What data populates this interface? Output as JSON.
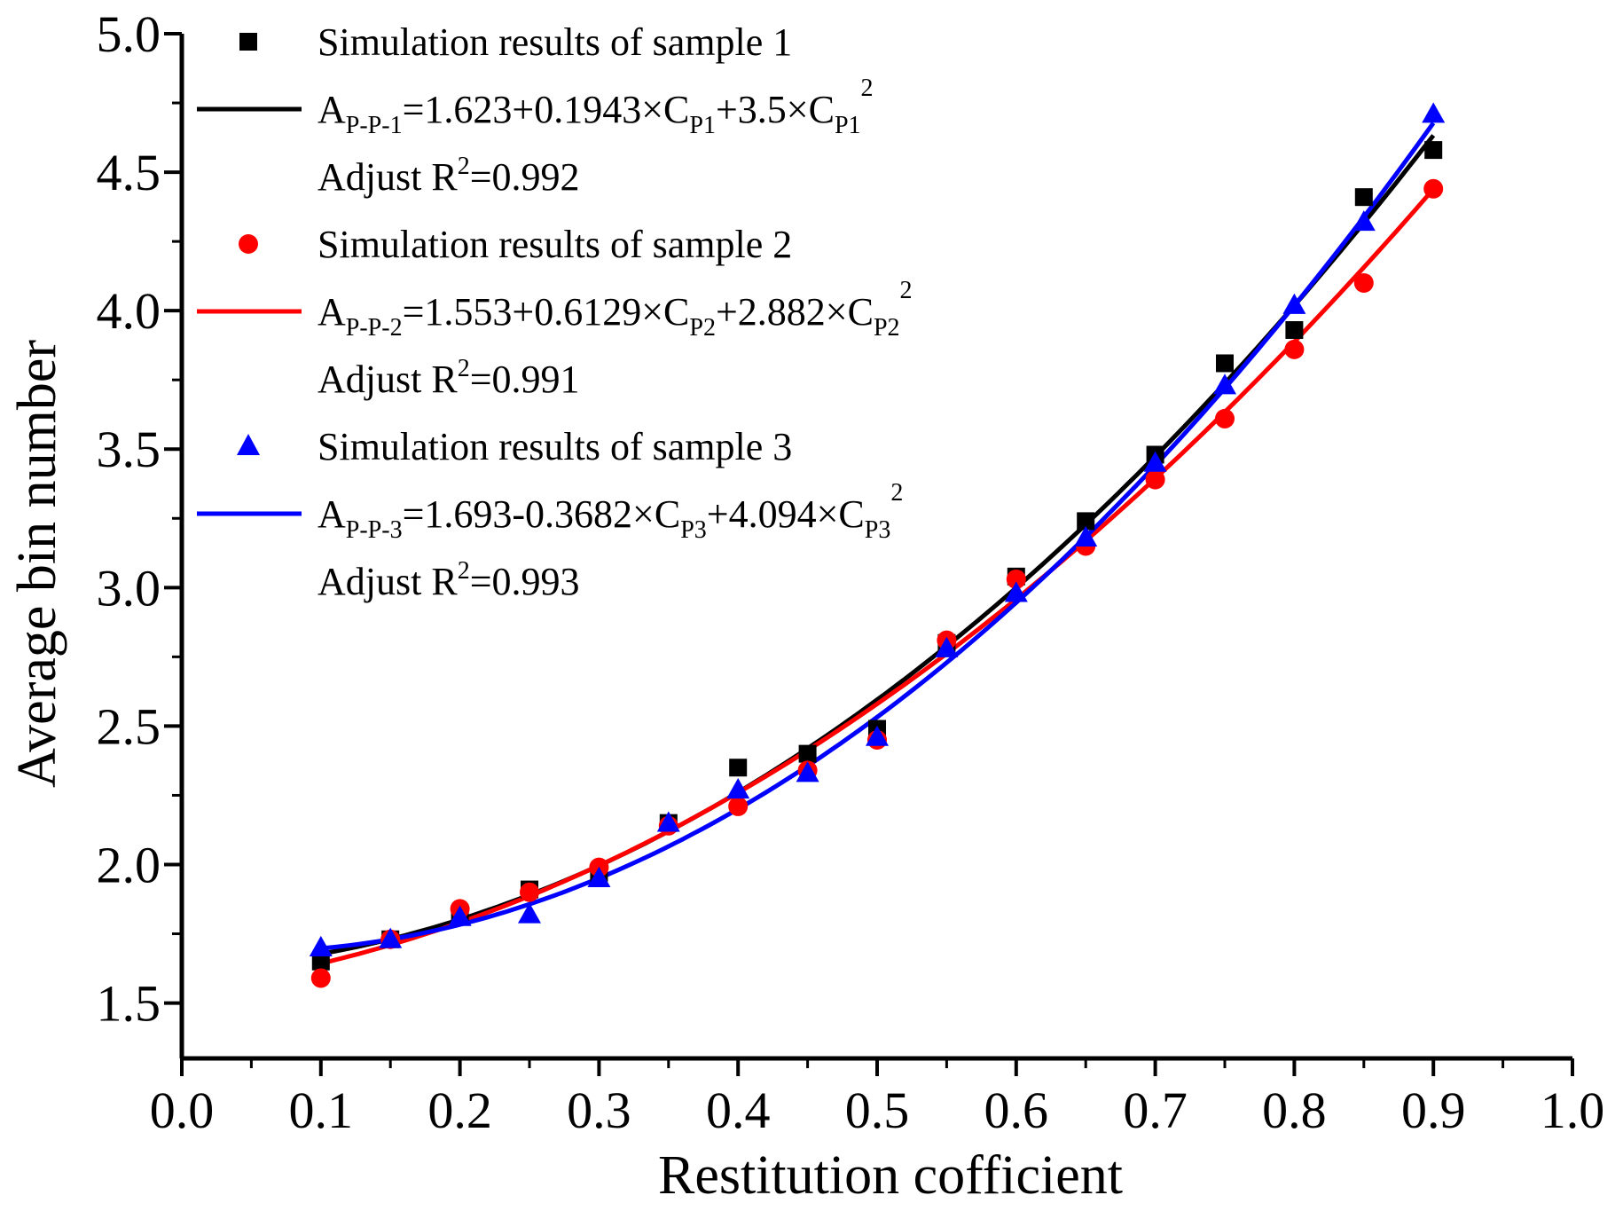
{
  "chart_data": {
    "type": "scatter",
    "xlabel": "Restitution cofficient",
    "ylabel": "Average bin number",
    "xlim": [
      0.0,
      1.0
    ],
    "ylim": [
      1.3,
      5.0
    ],
    "xticks": [
      "0.0",
      "0.1",
      "0.2",
      "0.3",
      "0.4",
      "0.5",
      "0.6",
      "0.7",
      "0.8",
      "0.9",
      "1.0"
    ],
    "yticks": [
      "1.5",
      "2.0",
      "2.5",
      "3.0",
      "3.5",
      "4.0",
      "4.5",
      "5.0"
    ],
    "grid": false,
    "legend_position": "top-left",
    "series": [
      {
        "name": "Simulation results of sample 1",
        "marker": "square",
        "color": "#000000",
        "x": [
          0.1,
          0.15,
          0.2,
          0.25,
          0.3,
          0.35,
          0.4,
          0.45,
          0.5,
          0.55,
          0.6,
          0.65,
          0.7,
          0.75,
          0.8,
          0.85,
          0.9
        ],
        "y": [
          1.65,
          1.73,
          1.82,
          1.91,
          1.97,
          2.15,
          2.35,
          2.4,
          2.49,
          2.8,
          3.04,
          3.24,
          3.48,
          3.81,
          3.93,
          4.41,
          4.58
        ],
        "fit": {
          "a": 1.623,
          "b": 0.1943,
          "c": 3.5
        },
        "fit_prefix": "A",
        "fit_sub": "P-P-1",
        "fit_eq_a": "=1.623+0.1943×C",
        "fit_sub2": "P1",
        "fit_eq_b": "+3.5×C",
        "fit_sub3": "P1",
        "fit_sup": "2",
        "r2_prefix": "Adjust R",
        "r2_sup": "2",
        "r2_value": "=0.992"
      },
      {
        "name": "Simulation results of sample 2",
        "marker": "circle",
        "color": "#ff0000",
        "x": [
          0.1,
          0.15,
          0.2,
          0.25,
          0.3,
          0.35,
          0.4,
          0.45,
          0.5,
          0.55,
          0.6,
          0.65,
          0.7,
          0.75,
          0.8,
          0.85,
          0.9
        ],
        "y": [
          1.59,
          1.73,
          1.84,
          1.9,
          1.99,
          2.14,
          2.21,
          2.34,
          2.45,
          2.81,
          3.03,
          3.15,
          3.39,
          3.61,
          3.86,
          4.1,
          4.44
        ],
        "fit": {
          "a": 1.553,
          "b": 0.6129,
          "c": 2.882
        },
        "fit_prefix": "A",
        "fit_sub": "P-P-2",
        "fit_eq_a": "=1.553+0.6129×C",
        "fit_sub2": "P2",
        "fit_eq_b": "+2.882×C",
        "fit_sub3": "P2",
        "fit_sup": "2",
        "r2_prefix": "Adjust R",
        "r2_sup": "2",
        "r2_value": "=0.991"
      },
      {
        "name": "Simulation results of sample 3",
        "marker": "triangle",
        "color": "#0000ff",
        "x": [
          0.1,
          0.15,
          0.2,
          0.25,
          0.3,
          0.35,
          0.4,
          0.45,
          0.5,
          0.55,
          0.6,
          0.65,
          0.7,
          0.75,
          0.8,
          0.85,
          0.9
        ],
        "y": [
          1.7,
          1.73,
          1.81,
          1.82,
          1.95,
          2.15,
          2.27,
          2.33,
          2.46,
          2.78,
          2.98,
          3.18,
          3.45,
          3.73,
          4.02,
          4.32,
          4.71
        ],
        "fit": {
          "a": 1.693,
          "b": -0.3682,
          "c": 4.094
        },
        "fit_prefix": "A",
        "fit_sub": "P-P-3",
        "fit_eq_a": "=1.693-0.3682×C",
        "fit_sub2": "P3",
        "fit_eq_b": "+4.094×C",
        "fit_sub3": "P3",
        "fit_sup": "2",
        "r2_prefix": "Adjust R",
        "r2_sup": "2",
        "r2_value": "=0.993"
      }
    ]
  }
}
